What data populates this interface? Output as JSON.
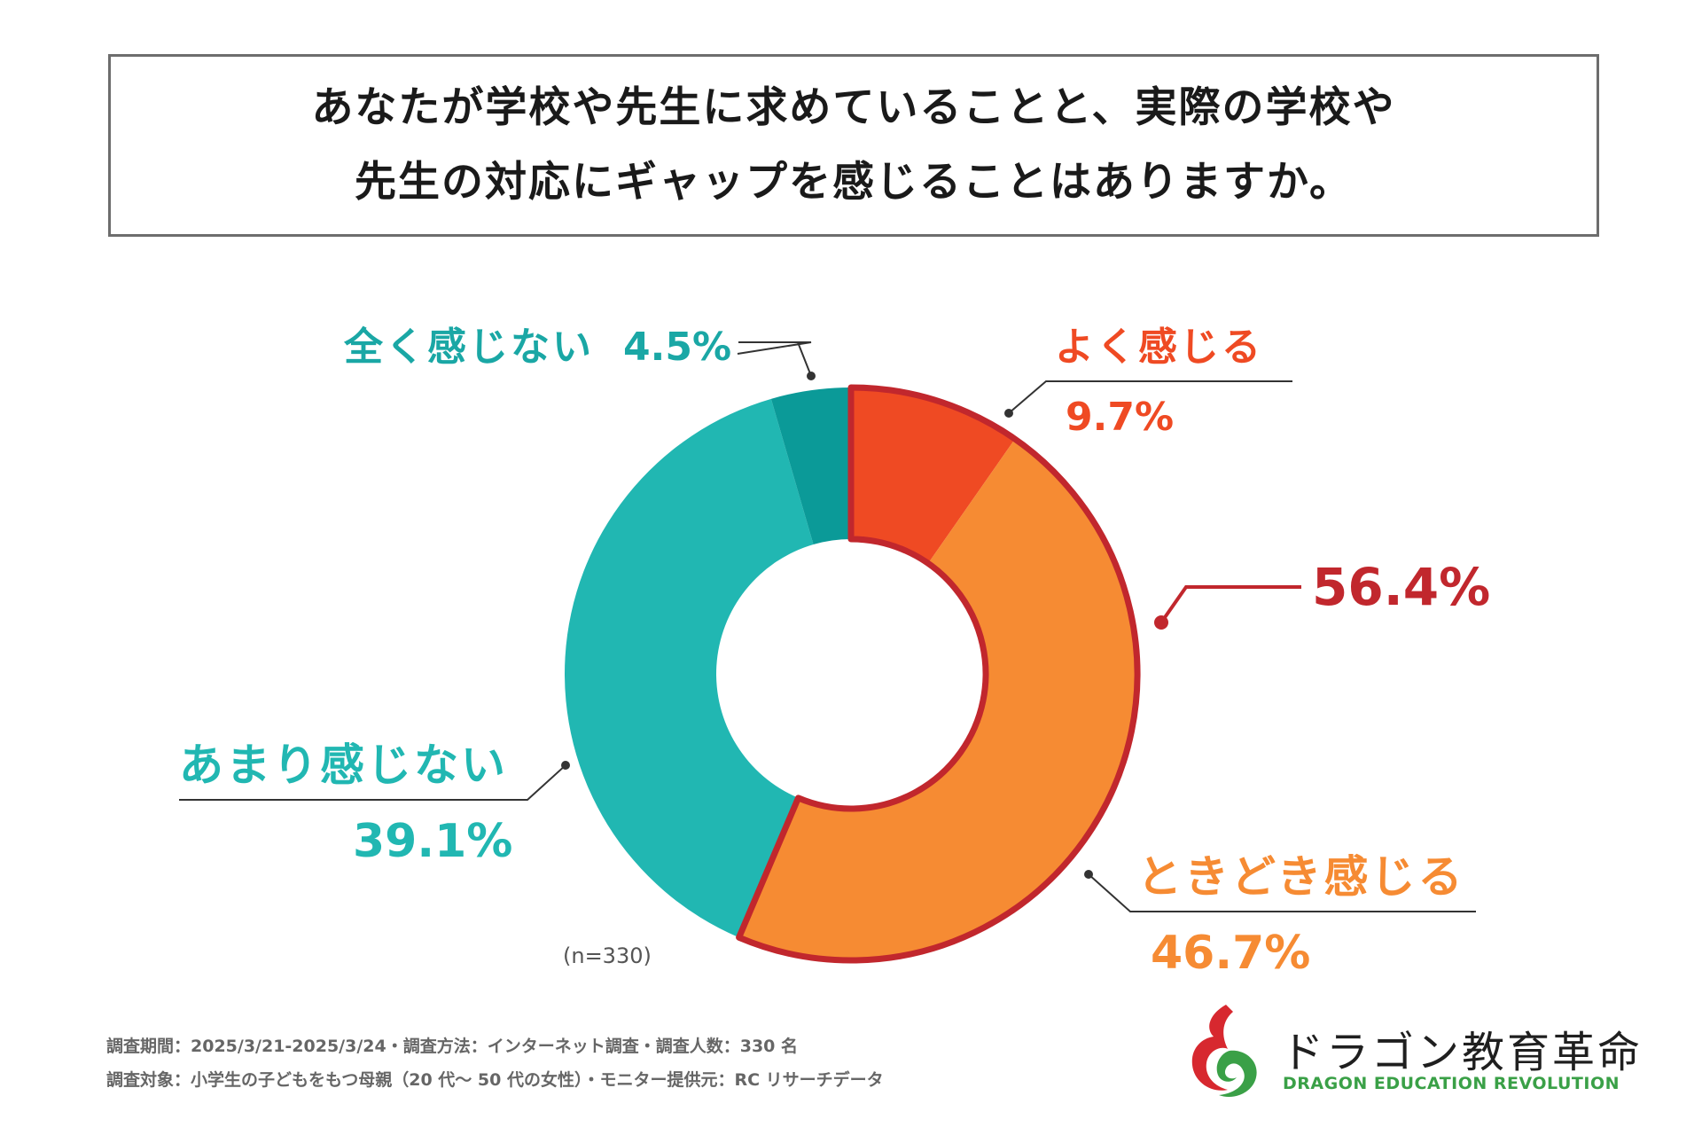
{
  "title": {
    "line1": "あなたが学校や先生に求めていることと、実際の学校や",
    "line2": "先生の対応にギャップを感じることはありますか。"
  },
  "chart_data": {
    "type": "pie",
    "variant": "donut",
    "sample_note": "(n=330)",
    "slices": [
      {
        "label": "よく感じる",
        "value": 9.7,
        "value_text": "9.7%",
        "color": "#ef4a23"
      },
      {
        "label": "ときどき感じる",
        "value": 46.7,
        "value_text": "46.7%",
        "color": "#f68b33"
      },
      {
        "label": "あまり感じない",
        "value": 39.1,
        "value_text": "39.1%",
        "color": "#21b7b2"
      },
      {
        "label": "全く感じない",
        "value": 4.5,
        "value_text": "4.5%",
        "color": "#0b9a98"
      }
    ],
    "group_highlight": {
      "value": 56.4,
      "value_text": "56.4%",
      "color": "#c1272d"
    }
  },
  "footer": {
    "line1": "調査期間：2025/3/21-2025/3/24・調査方法：インターネット調査・調査人数：330 名",
    "line2": "調査対象：小学生の子どもをもつ母親（20 代〜 50 代の女性）・モニター提供元：RC リサーチデータ"
  },
  "brand": {
    "name": "ドラゴン教育革命",
    "sub": "DRAGON EDUCATION REVOLUTION",
    "logo_colors": {
      "red": "#d7282f",
      "green": "#3aa047"
    }
  }
}
